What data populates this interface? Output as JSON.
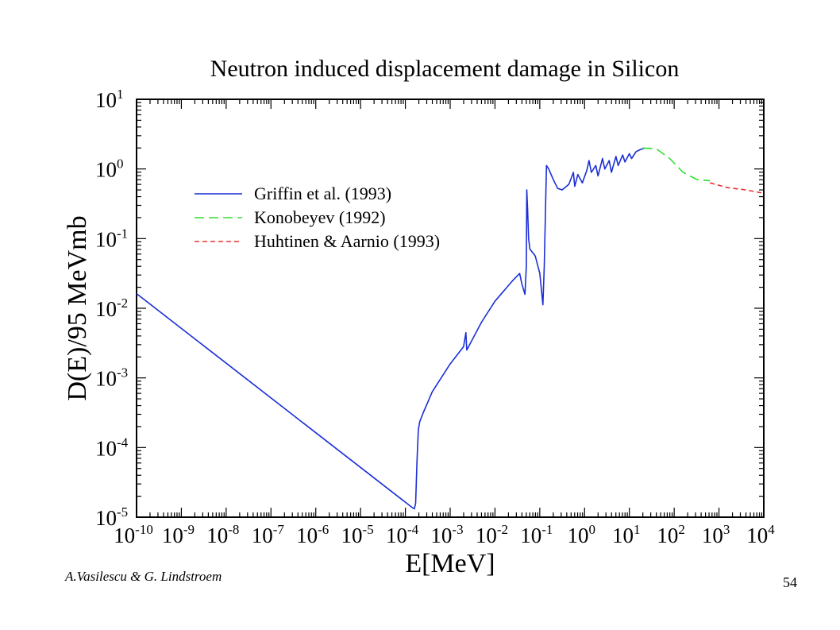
{
  "chart_data": {
    "type": "line",
    "title": "Neutron induced displacement damage in Silicon",
    "xlabel": "E[MeV]",
    "ylabel": "D(E)/95 MeVmb",
    "xscale": "log",
    "yscale": "log",
    "xlim_exp": [
      -10,
      4
    ],
    "ylim_exp": [
      -5,
      1
    ],
    "x_ticks": [
      {
        "base": "10",
        "exp": "-10"
      },
      {
        "base": "10",
        "exp": "-9"
      },
      {
        "base": "10",
        "exp": "-8"
      },
      {
        "base": "10",
        "exp": "-7"
      },
      {
        "base": "10",
        "exp": "-6"
      },
      {
        "base": "10",
        "exp": "-5"
      },
      {
        "base": "10",
        "exp": "-4"
      },
      {
        "base": "10",
        "exp": "-3"
      },
      {
        "base": "10",
        "exp": "-2"
      },
      {
        "base": "10",
        "exp": "-1"
      },
      {
        "base": "10",
        "exp": "0"
      },
      {
        "base": "10",
        "exp": "1"
      },
      {
        "base": "10",
        "exp": "2"
      },
      {
        "base": "10",
        "exp": "3"
      },
      {
        "base": "10",
        "exp": "4"
      }
    ],
    "y_ticks": [
      {
        "base": "10",
        "exp": "-5"
      },
      {
        "base": "10",
        "exp": "-4"
      },
      {
        "base": "10",
        "exp": "-3"
      },
      {
        "base": "10",
        "exp": "-2"
      },
      {
        "base": "10",
        "exp": "-1"
      },
      {
        "base": "10",
        "exp": "0"
      },
      {
        "base": "10",
        "exp": "1"
      }
    ],
    "legend_position": "upper-left",
    "series": [
      {
        "name": "Griffin et al. (1993)",
        "color": "#1a2fd6",
        "dash": "solid",
        "log10_points": [
          [
            -10,
            -1.79
          ],
          [
            -3.85,
            -4.86
          ],
          [
            -3.8,
            -4.88
          ],
          [
            -3.77,
            -4.8
          ],
          [
            -3.74,
            -4.2
          ],
          [
            -3.71,
            -3.75
          ],
          [
            -3.68,
            -3.63
          ],
          [
            -3.6,
            -3.5
          ],
          [
            -3.4,
            -3.2
          ],
          [
            -3.0,
            -2.8
          ],
          [
            -2.7,
            -2.55
          ],
          [
            -2.65,
            -2.35
          ],
          [
            -2.63,
            -2.6
          ],
          [
            -2.3,
            -2.2
          ],
          [
            -2.0,
            -1.9
          ],
          [
            -1.6,
            -1.6
          ],
          [
            -1.45,
            -1.5
          ],
          [
            -1.4,
            -1.65
          ],
          [
            -1.33,
            -1.8
          ],
          [
            -1.3,
            -1.4
          ],
          [
            -1.29,
            -0.3
          ],
          [
            -1.27,
            -0.6
          ],
          [
            -1.25,
            -1.0
          ],
          [
            -1.22,
            -1.15
          ],
          [
            -1.1,
            -1.25
          ],
          [
            -1.0,
            -1.5
          ],
          [
            -0.93,
            -1.95
          ],
          [
            -0.9,
            -1.4
          ],
          [
            -0.85,
            0.05
          ],
          [
            -0.8,
            0.0
          ],
          [
            -0.7,
            -0.15
          ],
          [
            -0.6,
            -0.28
          ],
          [
            -0.5,
            -0.3
          ],
          [
            -0.35,
            -0.22
          ],
          [
            -0.25,
            -0.05
          ],
          [
            -0.22,
            -0.25
          ],
          [
            -0.15,
            -0.08
          ],
          [
            -0.05,
            -0.2
          ],
          [
            0.05,
            -0.02
          ],
          [
            0.1,
            0.12
          ],
          [
            0.15,
            -0.05
          ],
          [
            0.25,
            0.05
          ],
          [
            0.3,
            -0.1
          ],
          [
            0.4,
            0.15
          ],
          [
            0.45,
            0.0
          ],
          [
            0.55,
            0.12
          ],
          [
            0.6,
            -0.05
          ],
          [
            0.7,
            0.18
          ],
          [
            0.75,
            0.05
          ],
          [
            0.85,
            0.2
          ],
          [
            0.9,
            0.1
          ],
          [
            1.0,
            0.22
          ],
          [
            1.05,
            0.15
          ],
          [
            1.15,
            0.25
          ],
          [
            1.25,
            0.28
          ],
          [
            1.35,
            0.3
          ]
        ]
      },
      {
        "name": "Konobeyev (1992)",
        "color": "#2ee02e",
        "dash": "long-dash",
        "log10_points": [
          [
            1.3,
            0.3
          ],
          [
            1.6,
            0.29
          ],
          [
            1.9,
            0.15
          ],
          [
            2.2,
            -0.05
          ],
          [
            2.5,
            -0.15
          ],
          [
            2.8,
            -0.17
          ]
        ]
      },
      {
        "name": "Huhtinen & Aarnio (1993)",
        "color": "#e83030",
        "dash": "short-dash",
        "log10_points": [
          [
            2.8,
            -0.2
          ],
          [
            3.2,
            -0.27
          ],
          [
            3.6,
            -0.3
          ],
          [
            4.0,
            -0.35
          ]
        ]
      }
    ]
  },
  "credit": "A.Vasilescu & G. Lindstroem",
  "page_number": "54"
}
